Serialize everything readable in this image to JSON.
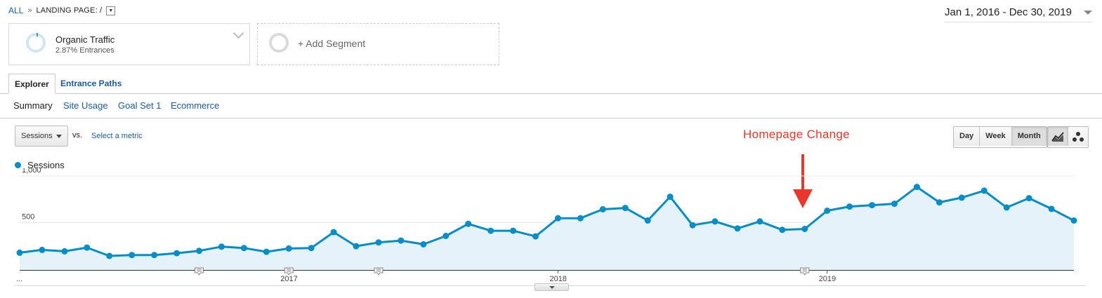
{
  "breadcrumb": {
    "all": "ALL",
    "separator": "»",
    "landing_page": "LANDING PAGE: /"
  },
  "date_range": "Jan 1, 2016 - Dec 30, 2019",
  "segments": {
    "primary": {
      "title": "Organic Traffic",
      "subtitle": "2.87% Entrances"
    },
    "add_label": "+ Add Segment"
  },
  "tabs": [
    {
      "label": "Explorer",
      "active": true
    },
    {
      "label": "Entrance Paths",
      "active": false
    }
  ],
  "subtabs": [
    "Summary",
    "Site Usage",
    "Goal Set 1",
    "Ecommerce"
  ],
  "metric_selector": {
    "value": "Sessions",
    "vs_label": "vs.",
    "select_label": "Select a metric"
  },
  "annotation_text": "Homepage Change",
  "period_buttons": [
    {
      "label": "Day",
      "active": false
    },
    {
      "label": "Week",
      "active": false
    },
    {
      "label": "Month",
      "active": true
    }
  ],
  "view_icons": [
    "line-chart-icon",
    "motion-chart-icon"
  ],
  "colors": {
    "series": "#058dc7",
    "fill": "#e6f2fa",
    "annotation": "#e8372b",
    "link": "#1a5b9e"
  },
  "chart_data": {
    "type": "line",
    "x_start": "2016-01",
    "x_end": "2019-12",
    "x_tick_labels": [
      "...",
      "2017",
      "2018",
      "2019"
    ],
    "x_tick_positions": [
      "2016-01",
      "2017-01",
      "2018-01",
      "2019-01"
    ],
    "y_tick_labels": [
      "1,000",
      "500"
    ],
    "y_ticks": [
      1000,
      500
    ],
    "ylim": [
      0,
      1000
    ],
    "grid": true,
    "series": [
      {
        "name": "Sessions",
        "values": [
          185,
          215,
          200,
          240,
          150,
          160,
          160,
          180,
          205,
          250,
          235,
          195,
          230,
          235,
          405,
          255,
          295,
          315,
          275,
          365,
          495,
          420,
          420,
          360,
          555,
          555,
          650,
          665,
          530,
          785,
          480,
          520,
          445,
          520,
          430,
          440,
          635,
          680,
          695,
          710,
          890,
          725,
          775,
          850,
          670,
          770,
          655,
          530
        ]
      }
    ],
    "annotation_markers": [
      "2016-09",
      "2017-01",
      "2017-05",
      "2018-12"
    ],
    "annotation_month": "2018-11",
    "legend": "top-left"
  }
}
